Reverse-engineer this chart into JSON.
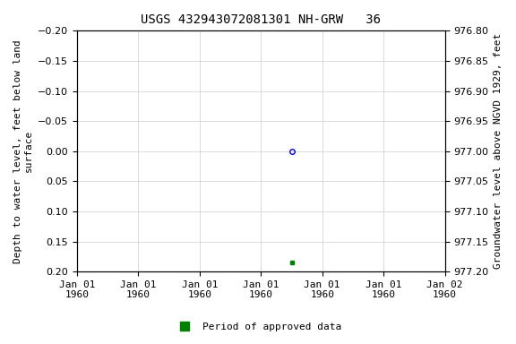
{
  "title": "USGS 432943072081301 NH-GRW   36",
  "ylabel_left": "Depth to water level, feet below land\nsurface",
  "ylabel_right": "Groundwater level above NGVD 1929, feet",
  "ylim_left": [
    -0.2,
    0.2
  ],
  "ylim_right": [
    977.2,
    976.8
  ],
  "yticks_left": [
    -0.2,
    -0.15,
    -0.1,
    -0.05,
    0.0,
    0.05,
    0.1,
    0.15,
    0.2
  ],
  "yticks_right": [
    977.2,
    977.15,
    977.1,
    977.05,
    977.0,
    976.95,
    976.9,
    976.85,
    976.8
  ],
  "data_point_color": "#0000cc",
  "data_point_marker": "o",
  "data_point_markersize": 4,
  "approved_point_color": "#008000",
  "approved_point_marker": "s",
  "approved_point_markersize": 3,
  "grid_color": "#cccccc",
  "background_color": "#ffffff",
  "title_fontsize": 10,
  "axis_label_fontsize": 8,
  "tick_fontsize": 8,
  "legend_label": "Period of approved data",
  "legend_color": "#008000",
  "n_xticks": 7,
  "xtick_labels": [
    "Jan 01\n1960",
    "Jan 01\n1960",
    "Jan 01\n1960",
    "Jan 01\n1960",
    "Jan 01\n1960",
    "Jan 01\n1960",
    "Jan 02\n1960"
  ]
}
